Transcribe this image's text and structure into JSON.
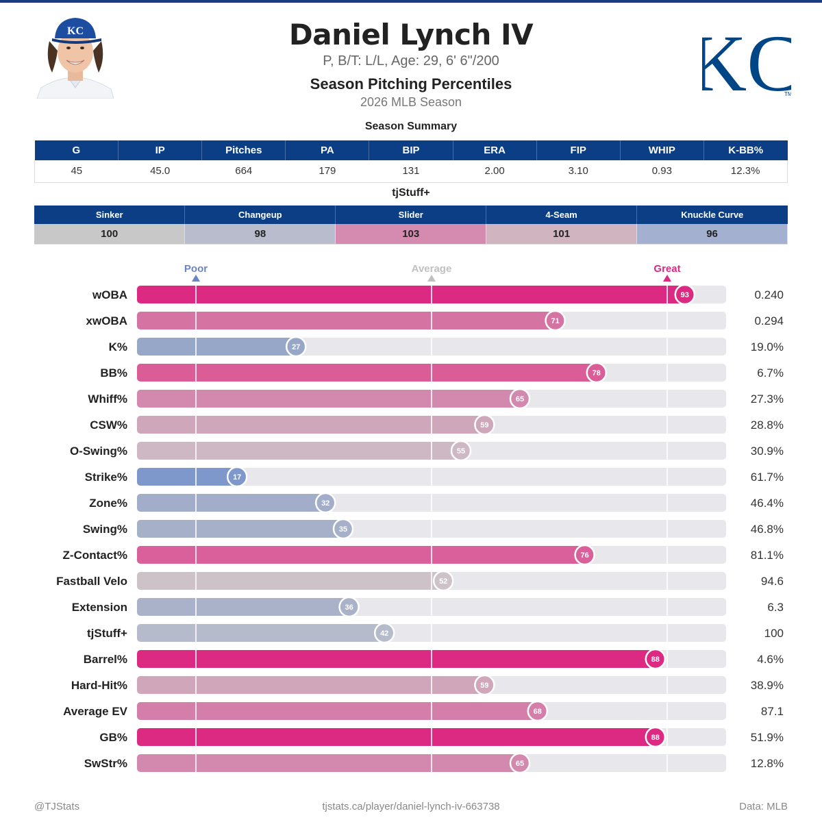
{
  "header": {
    "player_name": "Daniel Lynch IV",
    "bio": "P, B/T: L/L, Age: 29, 6' 6\"/200",
    "section_title": "Season Pitching Percentiles",
    "season": "2026 MLB Season",
    "team_logo_text": "KC",
    "team_logo_mark": "TM"
  },
  "summary": {
    "title": "Season Summary",
    "columns": [
      "G",
      "IP",
      "Pitches",
      "PA",
      "BIP",
      "ERA",
      "FIP",
      "WHIP",
      "K-BB%"
    ],
    "values": [
      "45",
      "45.0",
      "664",
      "179",
      "131",
      "2.00",
      "3.10",
      "0.93",
      "12.3%"
    ]
  },
  "tjstuff": {
    "title": "tjStuff+",
    "pitches": [
      {
        "name": "Sinker",
        "value": "100",
        "color": "#c8c8c8"
      },
      {
        "name": "Changeup",
        "value": "98",
        "color": "#b8bccc"
      },
      {
        "name": "Slider",
        "value": "103",
        "color": "#d58aaf"
      },
      {
        "name": "4-Seam",
        "value": "101",
        "color": "#d0b4c0"
      },
      {
        "name": "Knuckle Curve",
        "value": "96",
        "color": "#a3b0cf"
      }
    ]
  },
  "chart_data": {
    "type": "bar",
    "orientation": "horizontal",
    "xlim": [
      0,
      100
    ],
    "reference_markers": [
      {
        "label": "Poor",
        "value": 10,
        "color": "#6b84c4"
      },
      {
        "label": "Average",
        "value": 50,
        "color": "#c0c0c0"
      },
      {
        "label": "Great",
        "value": 90,
        "color": "#dc2a82"
      }
    ],
    "metrics": [
      {
        "label": "wOBA",
        "percentile": 93,
        "value": "0.240",
        "color": "#dc2a82"
      },
      {
        "label": "xwOBA",
        "percentile": 71,
        "value": "0.294",
        "color": "#d573a3"
      },
      {
        "label": "K%",
        "percentile": 27,
        "value": "19.0%",
        "color": "#97a7c8"
      },
      {
        "label": "BB%",
        "percentile": 78,
        "value": "6.7%",
        "color": "#da5d97"
      },
      {
        "label": "Whiff%",
        "percentile": 65,
        "value": "27.3%",
        "color": "#d388ae"
      },
      {
        "label": "CSW%",
        "percentile": 59,
        "value": "28.8%",
        "color": "#cfa7bb"
      },
      {
        "label": "O-Swing%",
        "percentile": 55,
        "value": "30.9%",
        "color": "#cdb8c4"
      },
      {
        "label": "Strike%",
        "percentile": 17,
        "value": "61.7%",
        "color": "#7f98cb"
      },
      {
        "label": "Zone%",
        "percentile": 32,
        "value": "46.4%",
        "color": "#a1adc9"
      },
      {
        "label": "Swing%",
        "percentile": 35,
        "value": "46.8%",
        "color": "#a6b0c9"
      },
      {
        "label": "Z-Contact%",
        "percentile": 76,
        "value": "81.1%",
        "color": "#d9609a"
      },
      {
        "label": "Fastball Velo",
        "percentile": 52,
        "value": "94.6",
        "color": "#cdc2c7"
      },
      {
        "label": "Extension",
        "percentile": 36,
        "value": "6.3",
        "color": "#a9b2c9"
      },
      {
        "label": "tjStuff+",
        "percentile": 42,
        "value": "100",
        "color": "#b5bbca"
      },
      {
        "label": "Barrel%",
        "percentile": 88,
        "value": "4.6%",
        "color": "#dc2a82"
      },
      {
        "label": "Hard-Hit%",
        "percentile": 59,
        "value": "38.9%",
        "color": "#cfa6ba"
      },
      {
        "label": "Average EV",
        "percentile": 68,
        "value": "87.1",
        "color": "#d47eaa"
      },
      {
        "label": "GB%",
        "percentile": 88,
        "value": "51.9%",
        "color": "#dc2a82"
      },
      {
        "label": "SwStr%",
        "percentile": 65,
        "value": "12.8%",
        "color": "#d388ae"
      }
    ]
  },
  "footer": {
    "left": "@TJStats",
    "center": "tjstats.ca/player/daniel-lynch-iv-663738",
    "right": "Data: MLB"
  }
}
